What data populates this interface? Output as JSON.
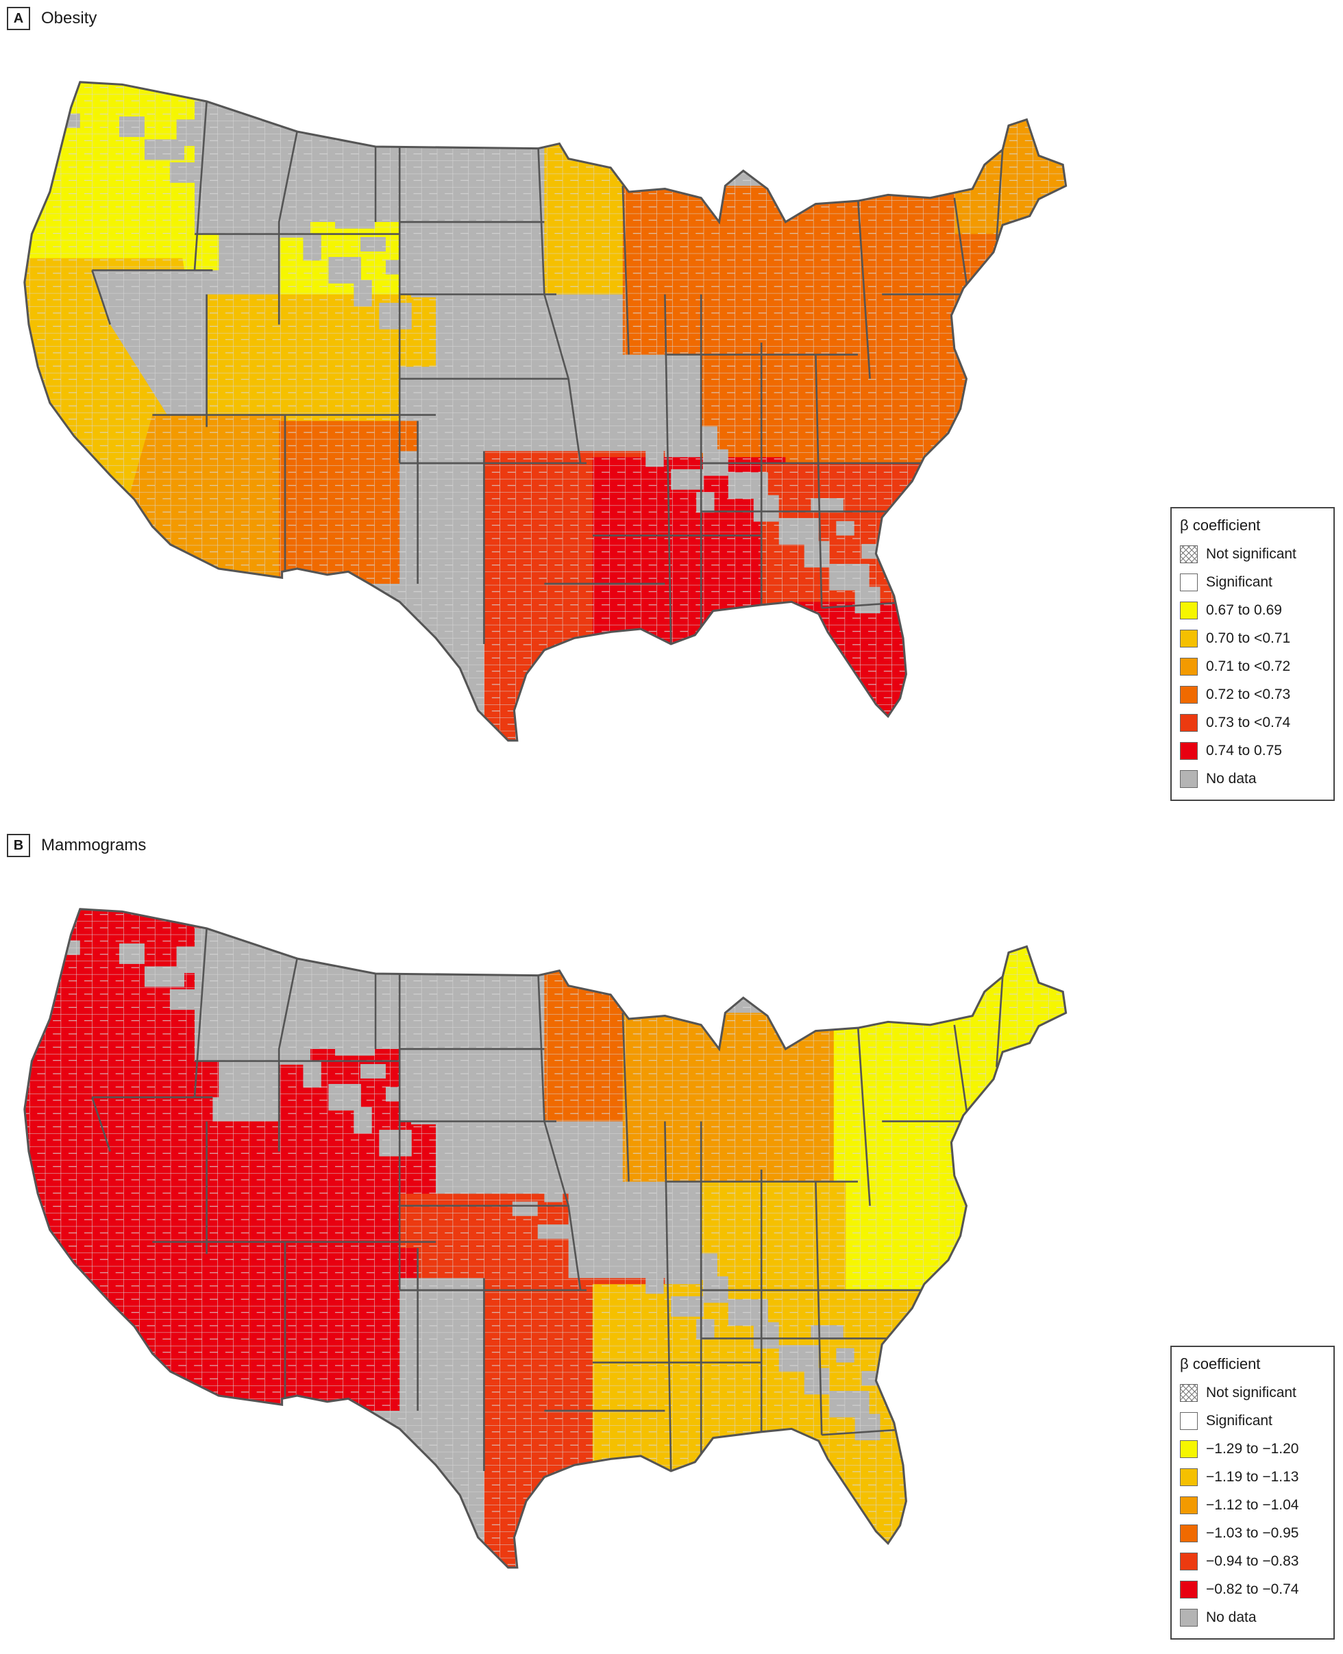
{
  "colors": {
    "class1": "#f6f600",
    "class2": "#f5c000",
    "class3": "#f39a00",
    "class4": "#f06a00",
    "class5": "#ec3a10",
    "class6": "#e80010",
    "no_data": "#b4b4b4",
    "county_line": "#d8d8d8",
    "state_line": "#555555"
  },
  "panels": [
    {
      "letter": "A",
      "title": "Obesity",
      "legend": {
        "title": "β coefficient",
        "items": [
          {
            "label": "Not significant",
            "swatch": "hatch"
          },
          {
            "label": "Significant",
            "swatch": "white"
          },
          {
            "label": "0.67 to 0.69",
            "swatch": "class1"
          },
          {
            "label": "0.70 to <0.71",
            "swatch": "class2"
          },
          {
            "label": "0.71 to <0.72",
            "swatch": "class3"
          },
          {
            "label": "0.72 to <0.73",
            "swatch": "class4"
          },
          {
            "label": "0.73 to <0.74",
            "swatch": "class5"
          },
          {
            "label": "0.74 to 0.75",
            "swatch": "class6"
          },
          {
            "label": "No data",
            "swatch": "no_data"
          }
        ]
      },
      "regions": {
        "pacific_northwest": "class1",
        "northern_rockies": "no_data",
        "wyoming": "class1",
        "northern_plains": "no_data",
        "california": "class2",
        "nevada": "no_data",
        "utah_colorado": "class2",
        "central_plains": "no_data",
        "upper_midwest": "class2",
        "southwest": "class3",
        "new_mexico": "class4",
        "west_texas": "no_data",
        "great_lakes": "class4",
        "northeast": "class4",
        "new_england": "class3",
        "ohio_valley": "class4",
        "mid_atlantic": "class4",
        "south_central": "class5",
        "deep_south": "class6",
        "southeast": "class5",
        "florida": "class6"
      }
    },
    {
      "letter": "B",
      "title": "Mammograms",
      "legend": {
        "title": "β coefficient",
        "items": [
          {
            "label": "Not significant",
            "swatch": "hatch"
          },
          {
            "label": "Significant",
            "swatch": "white"
          },
          {
            "label": "−1.29 to −1.20",
            "swatch": "class1"
          },
          {
            "label": "−1.19 to −1.13",
            "swatch": "class2"
          },
          {
            "label": "−1.12 to −1.04",
            "swatch": "class3"
          },
          {
            "label": "−1.03 to −0.95",
            "swatch": "class4"
          },
          {
            "label": "−0.94 to −0.83",
            "swatch": "class5"
          },
          {
            "label": "−0.82 to −0.74",
            "swatch": "class6"
          },
          {
            "label": "No data",
            "swatch": "no_data"
          }
        ]
      },
      "regions": {
        "pacific_northwest": "class6",
        "northern_rockies": "no_data",
        "wyoming": "class6",
        "northern_plains": "no_data",
        "california": "class6",
        "nevada": "class6",
        "utah_colorado": "class6",
        "central_plains": "class5",
        "upper_midwest": "class4",
        "southwest": "class6",
        "new_mexico": "class6",
        "west_texas": "no_data",
        "great_lakes": "class3",
        "northeast": "class1",
        "new_england": "class1",
        "ohio_valley": "class2",
        "mid_atlantic": "class1",
        "south_central": "class5",
        "deep_south": "class2",
        "southeast": "class2",
        "florida": "class2"
      }
    }
  ]
}
